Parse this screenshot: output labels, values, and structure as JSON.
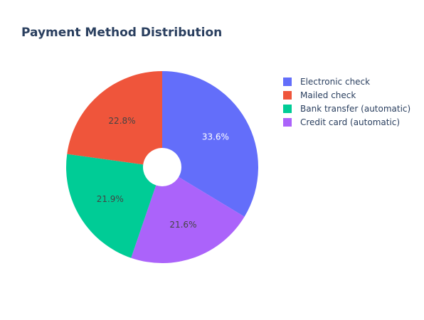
{
  "chart_data": {
    "type": "pie",
    "title": "Payment Method Distribution",
    "hole": true,
    "direction": "clockwise",
    "legend_position": "top-right",
    "slices": [
      {
        "label": "Electronic check",
        "value": 33.6,
        "text": "33.6%",
        "color": "#636efa",
        "text_color": "#ffffff"
      },
      {
        "label": "Credit card (automatic)",
        "value": 21.6,
        "text": "21.6%",
        "color": "#ab63fa",
        "text_color": "#444444"
      },
      {
        "label": "Bank transfer (automatic)",
        "value": 21.9,
        "text": "21.9%",
        "color": "#00cc96",
        "text_color": "#444444"
      },
      {
        "label": "Mailed check",
        "value": 22.8,
        "text": "22.8%",
        "color": "#ef553b",
        "text_color": "#444444"
      }
    ],
    "legend": [
      {
        "label": "Electronic check",
        "color": "#636efa"
      },
      {
        "label": "Mailed check",
        "color": "#ef553b"
      },
      {
        "label": "Bank transfer (automatic)",
        "color": "#00cc96"
      },
      {
        "label": "Credit card (automatic)",
        "color": "#ab63fa"
      }
    ]
  }
}
